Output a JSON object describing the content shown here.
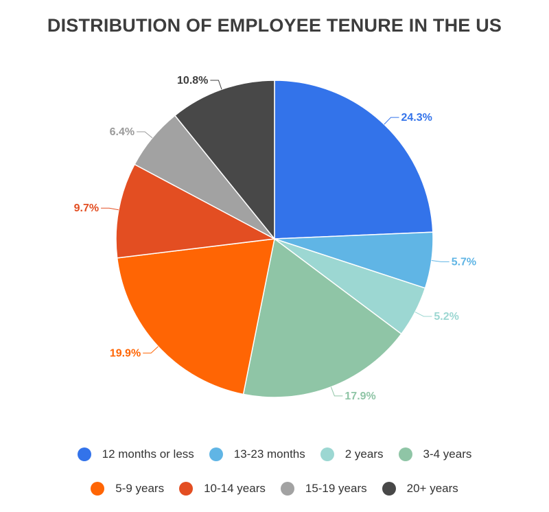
{
  "chart_data": {
    "type": "pie",
    "title": "DISTRIBUTION OF EMPLOYEE TENURE IN THE US",
    "slices": [
      {
        "label": "12 months or less",
        "value": 24.3,
        "value_label": "24.3%",
        "color": "#3373EA"
      },
      {
        "label": "13-23 months",
        "value": 5.7,
        "value_label": "5.7%",
        "color": "#60B5E5"
      },
      {
        "label": "2 years",
        "value": 5.2,
        "value_label": "5.2%",
        "color": "#9CD7D2"
      },
      {
        "label": "3-4 years",
        "value": 17.9,
        "value_label": "17.9%",
        "color": "#8FC5A6"
      },
      {
        "label": "5-9 years",
        "value": 19.9,
        "value_label": "19.9%",
        "color": "#FF6504"
      },
      {
        "label": "10-14 years",
        "value": 9.7,
        "value_label": "9.7%",
        "color": "#E34E22"
      },
      {
        "label": "15-19 years",
        "value": 6.4,
        "value_label": "6.4%",
        "color": "#A2A2A2"
      },
      {
        "label": "20+ years",
        "value": 10.8,
        "value_label": "10.8%",
        "color": "#484848"
      }
    ],
    "legend_placement": "bottom",
    "legend_rows": [
      [
        0,
        1,
        2,
        3
      ],
      [
        4,
        5,
        6,
        7
      ]
    ]
  }
}
